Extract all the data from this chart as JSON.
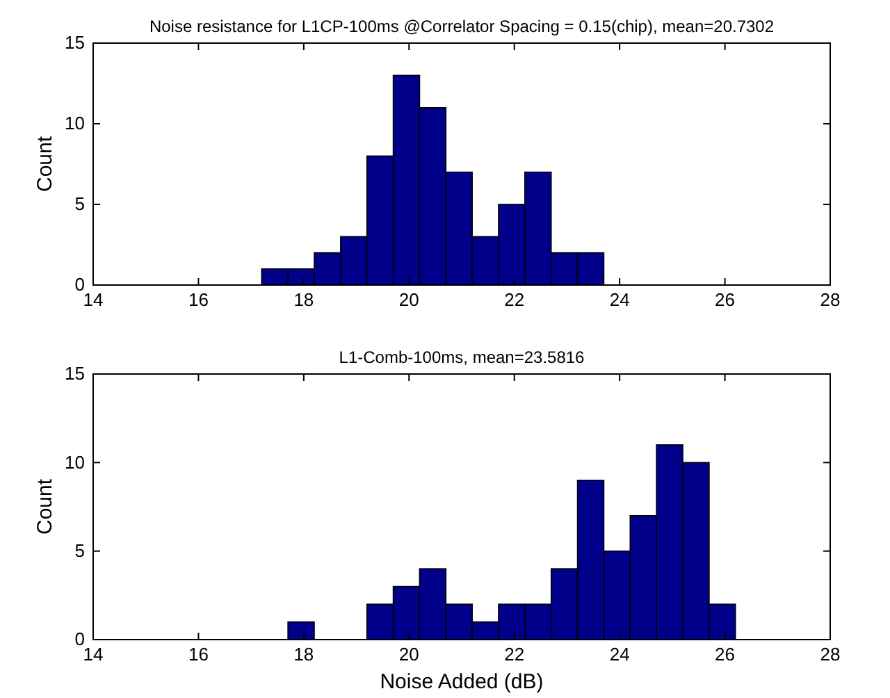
{
  "chart_data": [
    {
      "type": "histogram",
      "title": "Noise resistance for L1CP-100ms @Correlator Spacing = 0.15(chip), mean=20.7302",
      "ylabel": "Count",
      "color": "#00008b",
      "bins": [
        17.2,
        17.7,
        18.2,
        18.7,
        19.2,
        19.7,
        20.2,
        20.7,
        21.2,
        21.7,
        22.2,
        22.7,
        23.2,
        23.7
      ],
      "values": [
        1,
        1,
        2,
        3,
        8,
        13,
        11,
        7,
        3,
        5,
        7,
        2,
        2
      ],
      "xlim": [
        14,
        28
      ],
      "xticks": [
        14,
        16,
        18,
        20,
        22,
        24,
        26,
        28
      ],
      "ylim": [
        0,
        15
      ],
      "yticks": [
        0,
        5,
        10,
        15
      ],
      "grid": false
    },
    {
      "type": "histogram",
      "title": "L1-Comb-100ms, mean=23.5816",
      "xlabel": "Noise Added (dB)",
      "ylabel": "Count",
      "color": "#00008b",
      "bins": [
        17.7,
        18.2,
        18.7,
        19.2,
        19.7,
        20.2,
        20.7,
        21.2,
        21.7,
        22.2,
        22.7,
        23.2,
        23.7,
        24.2,
        24.7,
        25.2,
        25.7,
        26.2
      ],
      "values": [
        1,
        0,
        0,
        2,
        3,
        4,
        2,
        1,
        2,
        2,
        4,
        9,
        5,
        7,
        11,
        10,
        2
      ],
      "xlim": [
        14,
        28
      ],
      "xticks": [
        14,
        16,
        18,
        20,
        22,
        24,
        26,
        28
      ],
      "ylim": [
        0,
        15
      ],
      "yticks": [
        0,
        5,
        10,
        15
      ],
      "grid": false
    }
  ]
}
